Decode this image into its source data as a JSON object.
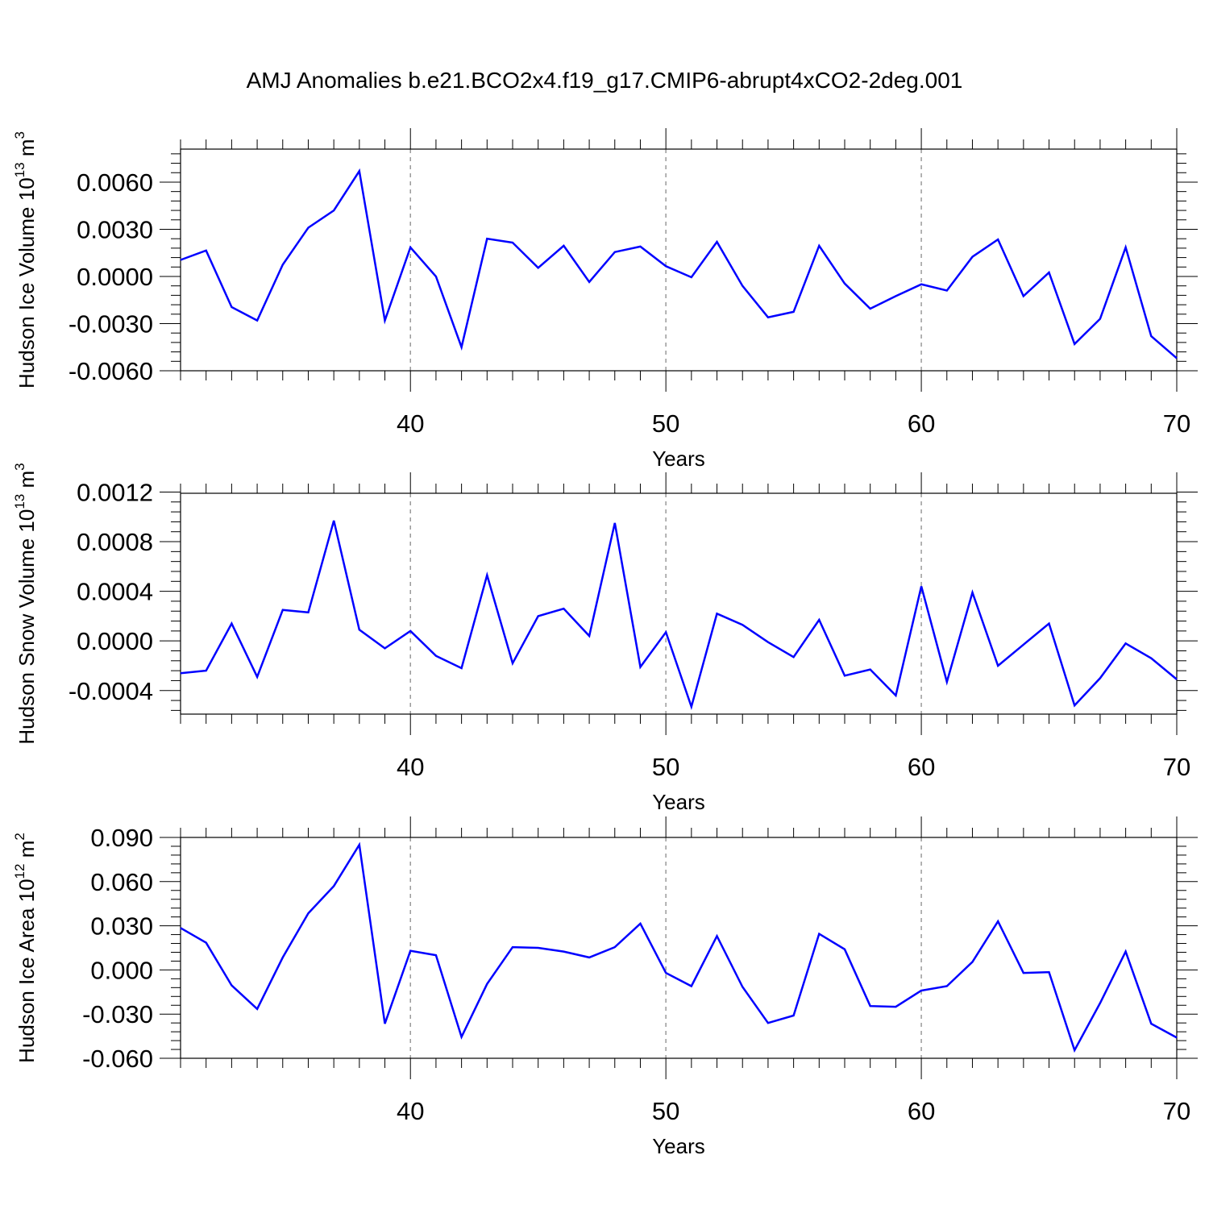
{
  "title": "AMJ Anomalies b.e21.BCO2x4.f19_g17.CMIP6-abrupt4xCO2-2deg.001",
  "line_color": "#0000ff",
  "grid_color": "#9a9a9a",
  "chart_data": [
    {
      "type": "line",
      "ylabel": "Hudson Ice Volume 10",
      "ylabel_sup": "13",
      "ylabel_unit": " m",
      "ylabel_unit_sup": "3",
      "xlabel": "Years",
      "xlim": [
        31,
        70
      ],
      "ylim": [
        -0.006,
        0.0081
      ],
      "yticks": [
        -0.006,
        -0.003,
        0.0,
        0.003,
        0.006
      ],
      "yticklabels": [
        "-0.0060",
        "-0.0030",
        "0.0000",
        "0.0030",
        "0.0060"
      ],
      "xticks": [
        40,
        50,
        60,
        70
      ],
      "xticklabels": [
        "40",
        "50",
        "60",
        "70"
      ],
      "grid": "vertical dashed at major x ticks",
      "x": [
        31,
        32,
        33,
        34,
        35,
        36,
        37,
        38,
        39,
        40,
        41,
        42,
        43,
        44,
        45,
        46,
        47,
        48,
        49,
        50,
        51,
        52,
        53,
        54,
        55,
        56,
        57,
        58,
        59,
        60,
        61,
        62,
        63,
        64,
        65,
        66,
        67,
        68,
        69,
        70
      ],
      "values": [
        0.00105,
        0.00165,
        -0.00195,
        -0.0028,
        0.00075,
        0.0031,
        0.0042,
        0.0067,
        -0.0028,
        0.00185,
        0.0,
        -0.0045,
        0.0024,
        0.00215,
        0.00055,
        0.00195,
        -0.00035,
        0.00155,
        0.0019,
        0.00065,
        -5e-05,
        0.0022,
        -0.0006,
        -0.0026,
        -0.00225,
        0.00195,
        -0.00045,
        -0.00205,
        -0.00125,
        -0.0005,
        -0.0009,
        0.00125,
        0.00235,
        -0.00125,
        0.00025,
        -0.0043,
        -0.0027,
        0.00185,
        -0.0038,
        -0.0052
      ]
    },
    {
      "type": "line",
      "ylabel": "Hudson Snow Volume 10",
      "ylabel_sup": "13",
      "ylabel_unit": " m",
      "ylabel_unit_sup": "3",
      "xlabel": "Years",
      "xlim": [
        31,
        70
      ],
      "ylim": [
        -0.00059,
        0.00119
      ],
      "yticks": [
        -0.0004,
        0.0,
        0.0004,
        0.0008,
        0.0012
      ],
      "yticklabels": [
        "-0.0004",
        "0.0000",
        "0.0004",
        "0.0008",
        "0.0012"
      ],
      "xticks": [
        40,
        50,
        60,
        70
      ],
      "xticklabels": [
        "40",
        "50",
        "60",
        "70"
      ],
      "grid": "vertical dashed at major x ticks",
      "x": [
        31,
        32,
        33,
        34,
        35,
        36,
        37,
        38,
        39,
        40,
        41,
        42,
        43,
        44,
        45,
        46,
        47,
        48,
        49,
        50,
        51,
        52,
        53,
        54,
        55,
        56,
        57,
        58,
        59,
        60,
        61,
        62,
        63,
        64,
        65,
        66,
        67,
        68,
        69,
        70
      ],
      "values": [
        -0.00026,
        -0.00024,
        0.00014,
        -0.00029,
        0.00025,
        0.00023,
        0.00097,
        9e-05,
        -6e-05,
        8e-05,
        -0.00012,
        -0.00022,
        0.00053,
        -0.00018,
        0.0002,
        0.00026,
        4e-05,
        0.00095,
        -0.00021,
        7e-05,
        -0.00053,
        0.00022,
        0.00013,
        -1e-05,
        -0.00013,
        0.00017,
        -0.00028,
        -0.00023,
        -0.00044,
        0.00044,
        -0.00033,
        0.00039,
        -0.0002,
        -3e-05,
        0.00014,
        -0.00052,
        -0.0003,
        -2e-05,
        -0.00014,
        -0.00031
      ]
    },
    {
      "type": "line",
      "ylabel": "Hudson Ice Area 10",
      "ylabel_sup": "12",
      "ylabel_unit": " m",
      "ylabel_unit_sup": "2",
      "xlabel": "Years",
      "xlim": [
        31,
        70
      ],
      "ylim": [
        -0.06,
        0.09
      ],
      "yticks": [
        -0.06,
        -0.03,
        0.0,
        0.03,
        0.06,
        0.09
      ],
      "yticklabels": [
        "-0.060",
        "-0.030",
        "0.000",
        "0.030",
        "0.060",
        "0.090"
      ],
      "xticks": [
        40,
        50,
        60,
        70
      ],
      "xticklabels": [
        "40",
        "50",
        "60",
        "70"
      ],
      "grid": "vertical dashed at major x ticks",
      "x": [
        31,
        32,
        33,
        34,
        35,
        36,
        37,
        38,
        39,
        40,
        41,
        42,
        43,
        44,
        45,
        46,
        47,
        48,
        49,
        50,
        51,
        52,
        53,
        54,
        55,
        56,
        57,
        58,
        59,
        60,
        61,
        62,
        63,
        64,
        65,
        66,
        67,
        68,
        69,
        70
      ],
      "values": [
        0.0285,
        0.0185,
        -0.0105,
        -0.0265,
        0.0085,
        0.0385,
        0.057,
        0.085,
        -0.0365,
        0.013,
        0.01,
        -0.0455,
        -0.0095,
        0.0155,
        0.015,
        0.0125,
        0.0085,
        0.0155,
        0.0315,
        -0.002,
        -0.011,
        0.023,
        -0.0115,
        -0.036,
        -0.031,
        0.0245,
        0.014,
        -0.0245,
        -0.025,
        -0.014,
        -0.011,
        0.0055,
        0.033,
        -0.002,
        -0.0015,
        -0.0545,
        -0.0225,
        0.0125,
        -0.0365,
        -0.046
      ]
    }
  ]
}
